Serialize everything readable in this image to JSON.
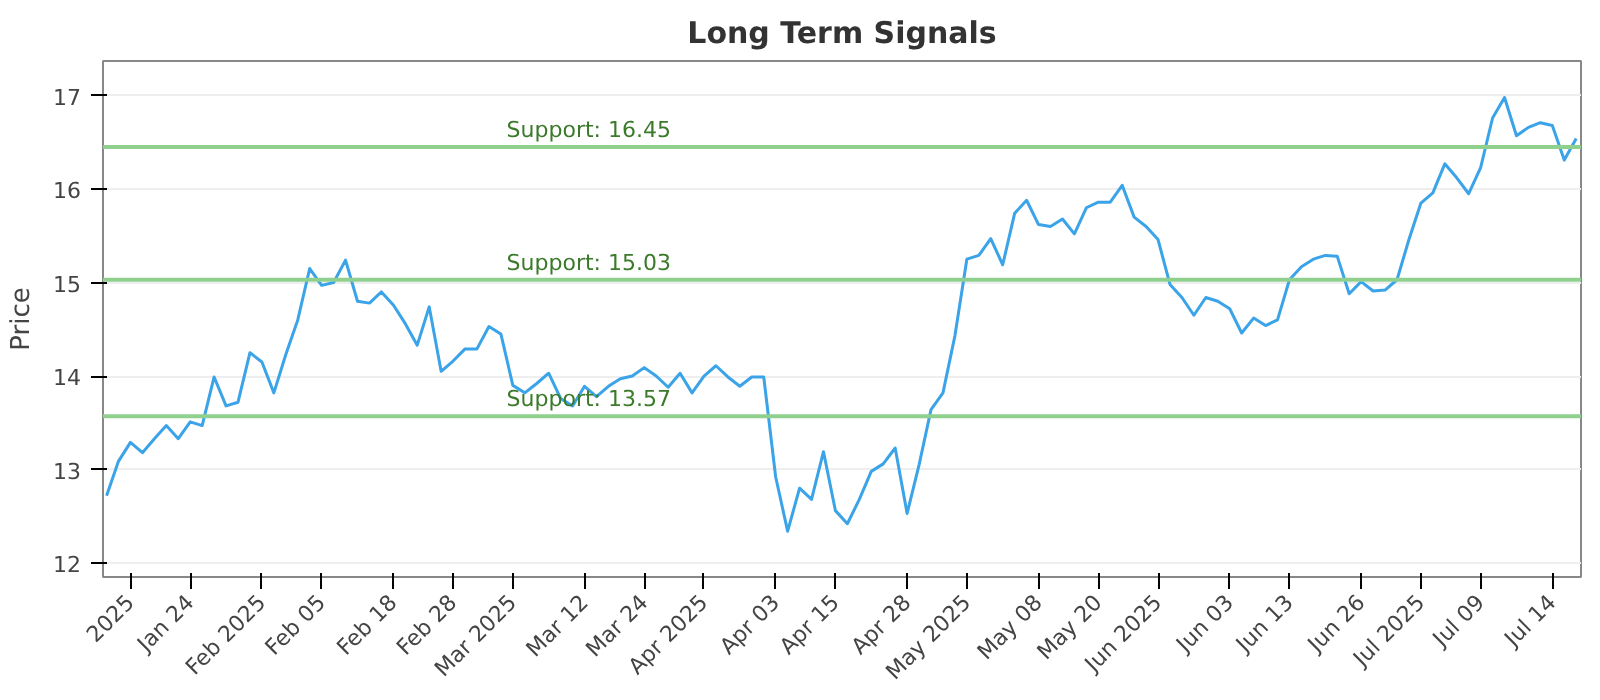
{
  "chart_data": {
    "type": "line",
    "title": "Long Term Signals",
    "ylabel": "Price",
    "categories": [
      null,
      null,
      "2025",
      null,
      null,
      null,
      null,
      "Jan 24",
      null,
      null,
      null,
      null,
      null,
      "Feb 2025",
      null,
      null,
      null,
      null,
      "Feb 05",
      null,
      null,
      null,
      null,
      null,
      "Feb 18",
      null,
      null,
      null,
      null,
      "Feb 28",
      null,
      null,
      null,
      null,
      "Mar 2025",
      null,
      null,
      null,
      null,
      null,
      "Mar 12",
      null,
      null,
      null,
      null,
      "Mar 24",
      null,
      null,
      null,
      null,
      "Apr 2025",
      null,
      null,
      null,
      null,
      null,
      "Apr 03",
      null,
      null,
      null,
      null,
      "Apr 15",
      null,
      null,
      null,
      null,
      null,
      "Apr 28",
      null,
      null,
      null,
      null,
      "May 2025",
      null,
      null,
      null,
      null,
      null,
      "May 08",
      null,
      null,
      null,
      null,
      "May 20",
      null,
      null,
      null,
      null,
      "Jun 2025",
      null,
      null,
      null,
      null,
      null,
      "Jun 03",
      null,
      null,
      null,
      null,
      "Jun 13",
      null,
      null,
      null,
      null,
      null,
      "Jun 26",
      null,
      null,
      null,
      null,
      "Jul 2025",
      null,
      null,
      null,
      null,
      "Jul 09",
      null,
      null,
      null,
      null,
      null,
      "Jul 14",
      null,
      null
    ],
    "series": [
      {
        "color": "#3ba3e8",
        "values": [
          12.72,
          13.09,
          13.29,
          13.18,
          13.33,
          13.47,
          13.33,
          13.51,
          13.47,
          13.99,
          13.68,
          13.72,
          14.25,
          14.15,
          13.82,
          14.23,
          14.6,
          15.15,
          14.97,
          15.0,
          15.24,
          14.8,
          14.78,
          14.9,
          14.76,
          14.56,
          14.33,
          14.74,
          14.05,
          14.16,
          14.29,
          14.29,
          14.53,
          14.45,
          13.9,
          13.82,
          13.92,
          14.03,
          13.76,
          13.68,
          13.89,
          13.78,
          13.89,
          13.97,
          14.0,
          14.09,
          14.0,
          13.88,
          14.03,
          13.82,
          14.0,
          14.11,
          13.99,
          13.89,
          13.99,
          13.99,
          12.92,
          12.34,
          12.8,
          12.68,
          13.19,
          12.56,
          12.42,
          12.68,
          12.98,
          13.06,
          13.23,
          12.53,
          13.05,
          13.64,
          13.82,
          14.43,
          15.25,
          15.29,
          15.47,
          15.19,
          15.74,
          15.88,
          15.62,
          15.6,
          15.68,
          15.52,
          15.8,
          15.86,
          15.86,
          16.04,
          15.7,
          15.6,
          15.46,
          14.98,
          14.84,
          14.65,
          14.84,
          14.8,
          14.72,
          14.46,
          14.62,
          14.54,
          14.6,
          15.03,
          15.17,
          15.25,
          15.29,
          15.28,
          14.88,
          15.01,
          14.91,
          14.92,
          15.03,
          15.46,
          15.85,
          15.96,
          16.27,
          16.12,
          15.95,
          16.23,
          16.76,
          16.98,
          16.57,
          16.66,
          16.71,
          16.68,
          16.31,
          16.54
        ]
      }
    ],
    "ylim": [
      11.85,
      17.37
    ],
    "yticks": [
      12,
      13,
      14,
      15,
      16,
      17
    ],
    "grid": "y",
    "ref_lines": [
      {
        "axis": "y",
        "value": 16.45,
        "label": "Support: 16.45",
        "color": "#8fd08f"
      },
      {
        "axis": "y",
        "value": 15.03,
        "label": "Support: 15.03",
        "color": "#8fd08f"
      },
      {
        "axis": "y",
        "value": 13.57,
        "label": "Support: 13.57",
        "color": "#8fd08f"
      }
    ]
  }
}
